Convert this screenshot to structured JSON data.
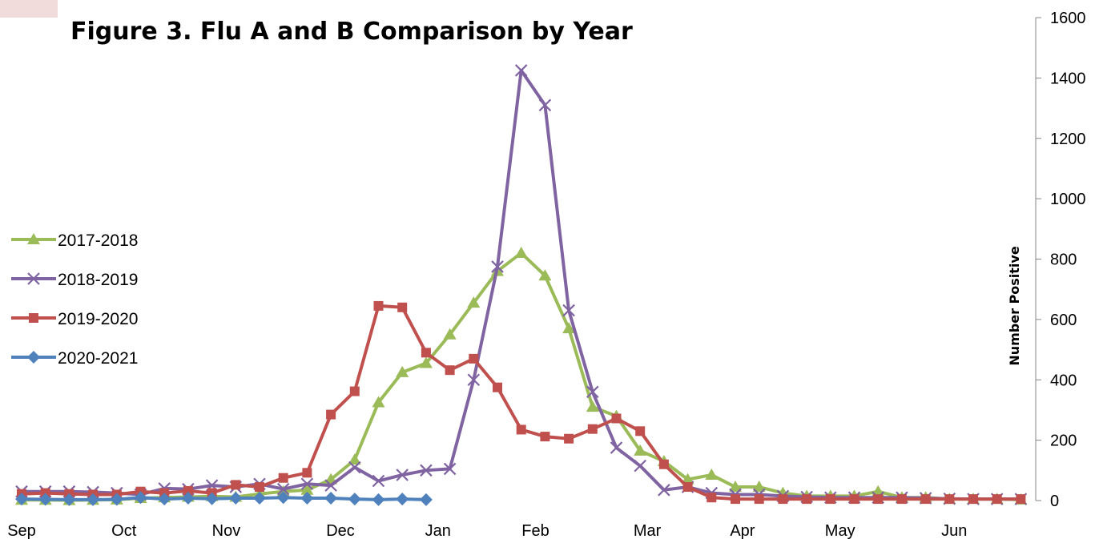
{
  "chart_data": {
    "type": "line",
    "title": "Figure 3. Flu A and B Comparison by Year",
    "xlabel": "",
    "ylabel": "Number Positive",
    "ylim": [
      0,
      1600
    ],
    "yticks": [
      0,
      200,
      400,
      600,
      800,
      1000,
      1200,
      1400,
      1600
    ],
    "x_month_labels": [
      "Sep",
      "Oct",
      "Nov",
      "Dec",
      "Jan",
      "Feb",
      "Mar",
      "Apr",
      "May",
      "Jun"
    ],
    "x_month_label_weeks": [
      0,
      4.3,
      8.6,
      13.4,
      17.5,
      21.6,
      26.3,
      30.3,
      34.4,
      39.2
    ],
    "grid": false,
    "y_axis_position": "right",
    "legend_position": "left",
    "series": [
      {
        "name": "2017-2018",
        "color": "#9bbb59",
        "marker": "triangle",
        "values": [
          2,
          2,
          1,
          2,
          3,
          8,
          10,
          12,
          14,
          12,
          22,
          30,
          35,
          70,
          135,
          325,
          425,
          455,
          550,
          655,
          760,
          820,
          745,
          570,
          310,
          280,
          165,
          130,
          70,
          85,
          45,
          45,
          25,
          15,
          15,
          15,
          30,
          10,
          10,
          5,
          5,
          5,
          3
        ]
      },
      {
        "name": "2018-2019",
        "color": "#8064a2",
        "marker": "x",
        "values": [
          30,
          30,
          30,
          28,
          25,
          20,
          40,
          38,
          50,
          45,
          55,
          38,
          55,
          50,
          110,
          65,
          85,
          100,
          105,
          400,
          775,
          1425,
          1310,
          630,
          360,
          175,
          115,
          35,
          45,
          25,
          20,
          20,
          15,
          12,
          10,
          10,
          10,
          10,
          8,
          6,
          5,
          5,
          5
        ]
      },
      {
        "name": "2019-2020",
        "color": "#c0504d",
        "marker": "square",
        "values": [
          22,
          25,
          22,
          20,
          20,
          30,
          25,
          32,
          25,
          52,
          45,
          75,
          92,
          285,
          362,
          645,
          640,
          490,
          432,
          470,
          375,
          235,
          212,
          205,
          237,
          272,
          230,
          120,
          45,
          10,
          5,
          5,
          5,
          5,
          5,
          5,
          5,
          5,
          5,
          5,
          5,
          5,
          5
        ]
      },
      {
        "name": "2020-2021",
        "color": "#4f81bd",
        "marker": "diamond",
        "values": [
          5,
          4,
          3,
          3,
          4,
          10,
          5,
          8,
          6,
          8,
          8,
          10,
          8,
          8,
          5,
          3,
          5,
          3
        ]
      }
    ]
  }
}
